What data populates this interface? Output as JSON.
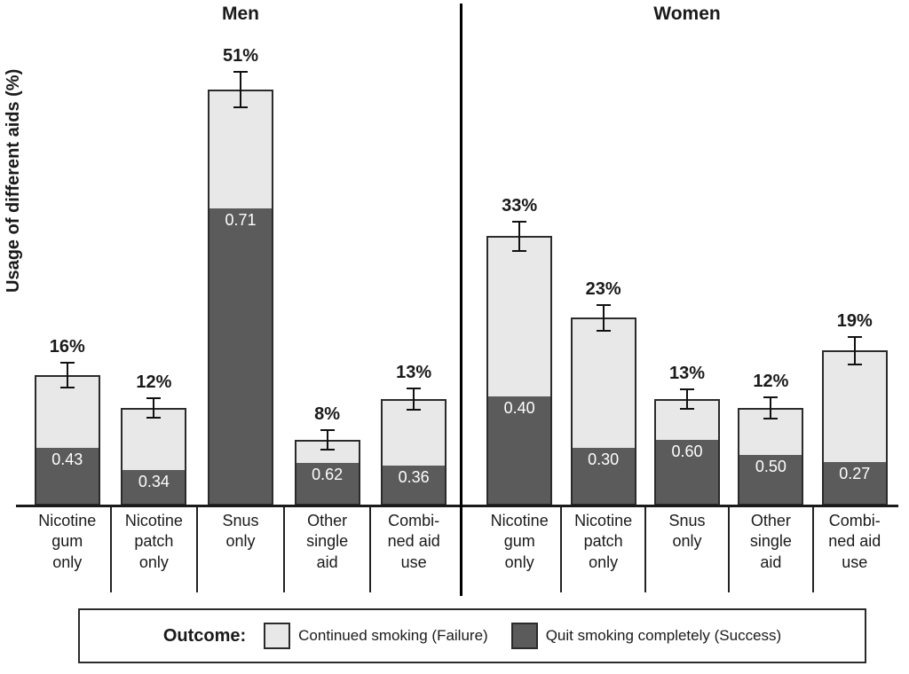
{
  "chart_data": {
    "type": "bar",
    "stacked": true,
    "title": "",
    "ylabel": "Usage of different aids (%)",
    "xlabel": "",
    "ylim": [
      0,
      62
    ],
    "grid": false,
    "legend_position": "bottom",
    "groups": [
      {
        "title": "Men",
        "bars": [
          {
            "category_lines": [
              "Nicotine",
              "gum",
              "only"
            ],
            "total_pct": 16,
            "total_label": "16%",
            "success_fraction": 0.43,
            "success_label": "0.43",
            "error_pct": 1.5
          },
          {
            "category_lines": [
              "Nicotine",
              "patch",
              "only"
            ],
            "total_pct": 12,
            "total_label": "12%",
            "success_fraction": 0.34,
            "success_label": "0.34",
            "error_pct": 1.2
          },
          {
            "category_lines": [
              "Snus",
              "only"
            ],
            "total_pct": 51,
            "total_label": "51%",
            "success_fraction": 0.71,
            "success_label": "0.71",
            "error_pct": 2.2
          },
          {
            "category_lines": [
              "Other",
              "single",
              "aid"
            ],
            "total_pct": 8,
            "total_label": "8%",
            "success_fraction": 0.62,
            "success_label": "0.62",
            "error_pct": 1.2
          },
          {
            "category_lines": [
              "Combi-",
              "ned aid",
              "use"
            ],
            "total_pct": 13,
            "total_label": "13%",
            "success_fraction": 0.36,
            "success_label": "0.36",
            "error_pct": 1.3
          }
        ]
      },
      {
        "title": "Women",
        "bars": [
          {
            "category_lines": [
              "Nicotine",
              "gum",
              "only"
            ],
            "total_pct": 33,
            "total_label": "33%",
            "success_fraction": 0.4,
            "success_label": "0.40",
            "error_pct": 1.8
          },
          {
            "category_lines": [
              "Nicotine",
              "patch",
              "only"
            ],
            "total_pct": 23,
            "total_label": "23%",
            "success_fraction": 0.3,
            "success_label": "0.30",
            "error_pct": 1.6
          },
          {
            "category_lines": [
              "Snus",
              "only"
            ],
            "total_pct": 13,
            "total_label": "13%",
            "success_fraction": 0.6,
            "success_label": "0.60",
            "error_pct": 1.2
          },
          {
            "category_lines": [
              "Other",
              "single",
              "aid"
            ],
            "total_pct": 12,
            "total_label": "12%",
            "success_fraction": 0.5,
            "success_label": "0.50",
            "error_pct": 1.3
          },
          {
            "category_lines": [
              "Combi-",
              "ned aid",
              "use"
            ],
            "total_pct": 19,
            "total_label": "19%",
            "success_fraction": 0.27,
            "success_label": "0.27",
            "error_pct": 1.7
          }
        ]
      }
    ],
    "legend": {
      "title": "Outcome:",
      "items": [
        {
          "label": "Continued smoking (Failure)",
          "color": "#e8e8e8"
        },
        {
          "label": "Quit smoking completely (Success)",
          "color": "#5b5b5b"
        }
      ]
    },
    "colors": {
      "failure": "#e8e8e8",
      "success": "#5b5b5b",
      "outline": "#2b2b2b",
      "axis": "#1a1a1a"
    }
  }
}
